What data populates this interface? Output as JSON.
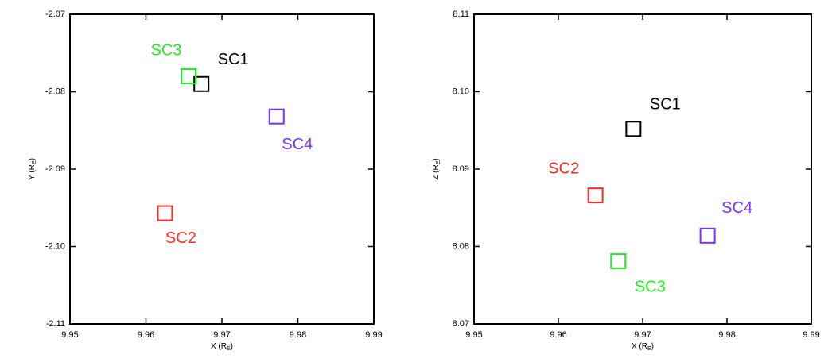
{
  "chart_data": [
    {
      "type": "scatter",
      "xlabel": [
        "X (R",
        "E",
        ")"
      ],
      "ylabel": [
        "Y (R",
        "E",
        ")"
      ],
      "xlim": [
        9.95,
        9.99
      ],
      "xticks": [
        9.95,
        9.96,
        9.97,
        9.98,
        9.99
      ],
      "ylim": [
        -2.11,
        -2.07
      ],
      "yticks": [
        -2.11,
        {
          "value": -2.1,
          "label": "-2.10"
        },
        -2.09,
        -2.08,
        -2.07
      ],
      "series": [
        {
          "name": "SC1",
          "color": "#000000",
          "x": [
            9.9673
          ],
          "values": [
            -2.079
          ]
        },
        {
          "name": "SC2",
          "color": "#ff2a2a",
          "x": [
            9.9625
          ],
          "values": [
            -2.0957
          ]
        },
        {
          "name": "SC3",
          "color": "#22ee22",
          "x": [
            9.9656
          ],
          "values": [
            -2.078
          ]
        },
        {
          "name": "SC4",
          "color": "#7a33ff",
          "x": [
            9.9772
          ],
          "values": [
            -2.0832
          ]
        }
      ]
    },
    {
      "type": "scatter",
      "xlabel": [
        "X (R",
        "E",
        ")"
      ],
      "ylabel": [
        "Z (R",
        "E",
        ")"
      ],
      "xlim": [
        9.95,
        9.99
      ],
      "xticks": [
        9.95,
        9.96,
        9.97,
        9.98,
        9.99
      ],
      "ylim": [
        8.07,
        8.11
      ],
      "yticks": [
        8.07,
        8.08,
        8.09,
        {
          "value": 8.1,
          "label": "8.10"
        },
        8.11
      ],
      "series": [
        {
          "name": "SC1",
          "color": "#000000",
          "x": [
            9.9689
          ],
          "values": [
            8.0952
          ]
        },
        {
          "name": "SC2",
          "color": "#ff2a2a",
          "x": [
            9.9644
          ],
          "values": [
            8.0866
          ]
        },
        {
          "name": "SC3",
          "color": "#22ee22",
          "x": [
            9.9671
          ],
          "values": [
            8.0781
          ]
        },
        {
          "name": "SC4",
          "color": "#7a33ff",
          "x": [
            9.9777
          ],
          "values": [
            8.0814
          ]
        }
      ]
    }
  ]
}
